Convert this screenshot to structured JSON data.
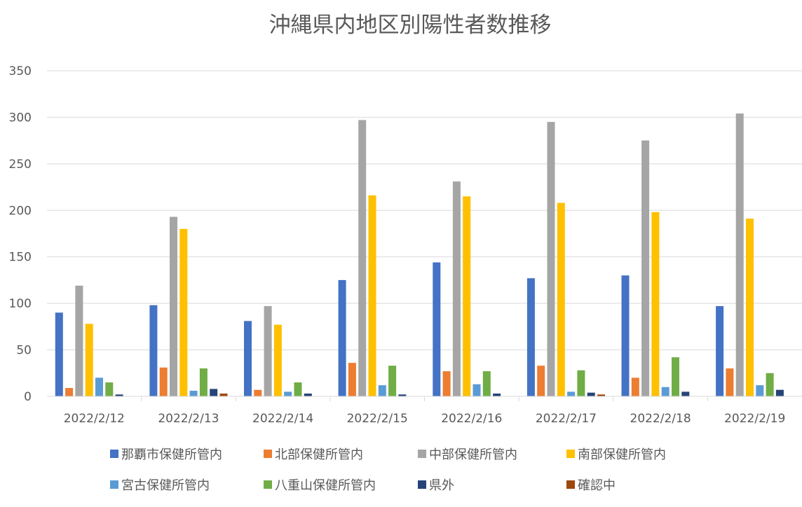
{
  "chart_data": {
    "type": "bar",
    "title": "沖縄県内地区別陽性者数推移",
    "categories": [
      "2022/2/12",
      "2022/2/13",
      "2022/2/14",
      "2022/2/15",
      "2022/2/16",
      "2022/2/17",
      "2022/2/18",
      "2022/2/19"
    ],
    "ylim": [
      0,
      350
    ],
    "yticks": [
      "0",
      "50",
      "100",
      "150",
      "200",
      "250",
      "300",
      "350"
    ],
    "ytick_values": [
      0,
      50,
      100,
      150,
      200,
      250,
      300,
      350
    ],
    "grid": true,
    "legend_position": "bottom",
    "series": [
      {
        "name": "那覇市保健所管内",
        "color": "#4472C4",
        "values": [
          90,
          98,
          81,
          125,
          144,
          127,
          130,
          97
        ]
      },
      {
        "name": "北部保健所管内",
        "color": "#ED7D31",
        "values": [
          9,
          31,
          7,
          36,
          27,
          33,
          20,
          30
        ]
      },
      {
        "name": "中部保健所管内",
        "color": "#A5A5A5",
        "values": [
          119,
          193,
          97,
          297,
          231,
          295,
          275,
          304
        ]
      },
      {
        "name": "南部保健所管内",
        "color": "#FFC000",
        "values": [
          78,
          180,
          77,
          216,
          215,
          208,
          198,
          191
        ]
      },
      {
        "name": "宮古保健所管内",
        "color": "#5B9BD5",
        "values": [
          20,
          6,
          5,
          12,
          13,
          5,
          10,
          12
        ]
      },
      {
        "name": "八重山保健所管内",
        "color": "#70AD47",
        "values": [
          15,
          30,
          15,
          33,
          27,
          28,
          42,
          25
        ]
      },
      {
        "name": "県外",
        "color": "#264478",
        "values": [
          2,
          8,
          3,
          2,
          3,
          4,
          5,
          7
        ]
      },
      {
        "name": "確認中",
        "color": "#9E480E",
        "values": [
          0,
          3,
          0,
          0,
          0,
          2,
          0,
          0
        ]
      }
    ]
  }
}
